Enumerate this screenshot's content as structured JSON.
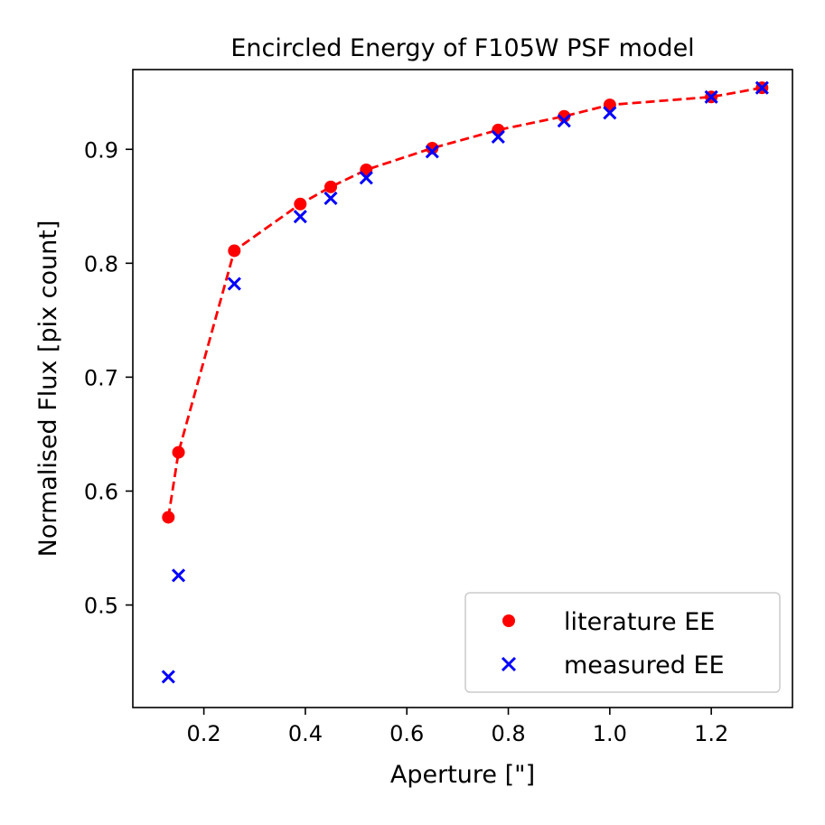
{
  "chart_data": {
    "type": "scatter",
    "title": "Encircled Energy of F105W PSF model",
    "xlabel": "Aperture [\"]",
    "ylabel": "Normalised Flux [pix count]",
    "xlim": [
      0.06,
      1.36
    ],
    "ylim": [
      0.41,
      0.97
    ],
    "xticks": [
      0.2,
      0.4,
      0.6,
      0.8,
      1.0,
      1.2
    ],
    "xtick_labels": [
      "0.2",
      "0.4",
      "0.6",
      "0.8",
      "1.0",
      "1.2"
    ],
    "yticks": [
      0.5,
      0.6,
      0.7,
      0.8,
      0.9
    ],
    "ytick_labels": [
      "0.5",
      "0.6",
      "0.7",
      "0.8",
      "0.9"
    ],
    "legend_position": "bottom-right",
    "series": [
      {
        "name": "literature EE",
        "marker": "circle",
        "line": "dashed",
        "color": "#ff0000",
        "x": [
          0.13,
          0.15,
          0.26,
          0.39,
          0.45,
          0.52,
          0.65,
          0.78,
          0.91,
          1.0,
          1.2,
          1.3
        ],
        "y": [
          0.577,
          0.634,
          0.811,
          0.852,
          0.867,
          0.882,
          0.901,
          0.917,
          0.929,
          0.939,
          0.946,
          0.954
        ]
      },
      {
        "name": "measured EE",
        "marker": "x",
        "line": "none",
        "color": "#0000ff",
        "x": [
          0.13,
          0.15,
          0.26,
          0.39,
          0.45,
          0.52,
          0.65,
          0.78,
          0.91,
          1.0,
          1.2,
          1.3
        ],
        "y": [
          0.437,
          0.526,
          0.782,
          0.841,
          0.857,
          0.875,
          0.898,
          0.911,
          0.925,
          0.932,
          0.946,
          0.954
        ]
      }
    ]
  }
}
